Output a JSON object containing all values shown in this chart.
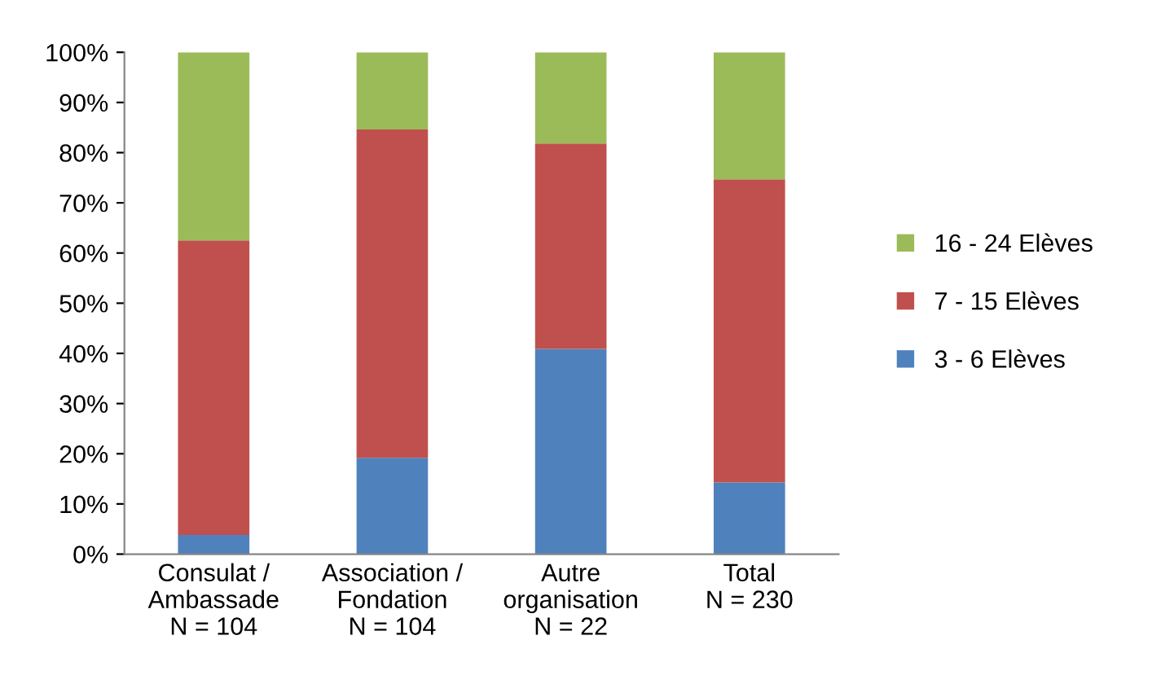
{
  "chart_data": {
    "type": "bar",
    "stacked": true,
    "categories": [
      "Consulat /\nAmbassade\nN = 104",
      "Association /\nFondation\nN = 104",
      "Autre\norganisation\nN = 22",
      "Total\nN = 230"
    ],
    "series": [
      {
        "name": "3 - 6 Elèves",
        "color": "#4f81bd",
        "values": [
          3.8,
          19.2,
          40.9,
          14.3
        ]
      },
      {
        "name": "7 - 15 Elèves",
        "color": "#c0504d",
        "values": [
          58.7,
          65.4,
          40.9,
          60.4
        ]
      },
      {
        "name": "16 - 24 Elèves",
        "color": "#9bbb59",
        "values": [
          37.5,
          15.4,
          18.2,
          25.3
        ]
      }
    ],
    "ylim": [
      0,
      100
    ],
    "yticks": [
      {
        "value": 0,
        "label": "0%"
      },
      {
        "value": 10,
        "label": "10%"
      },
      {
        "value": 20,
        "label": "20%"
      },
      {
        "value": 30,
        "label": "30%"
      },
      {
        "value": 40,
        "label": "40%"
      },
      {
        "value": 50,
        "label": "50%"
      },
      {
        "value": 60,
        "label": "60%"
      },
      {
        "value": 70,
        "label": "70%"
      },
      {
        "value": 80,
        "label": "80%"
      },
      {
        "value": 90,
        "label": "90%"
      },
      {
        "value": 100,
        "label": "100%"
      }
    ],
    "grid": false,
    "legend": "right"
  }
}
